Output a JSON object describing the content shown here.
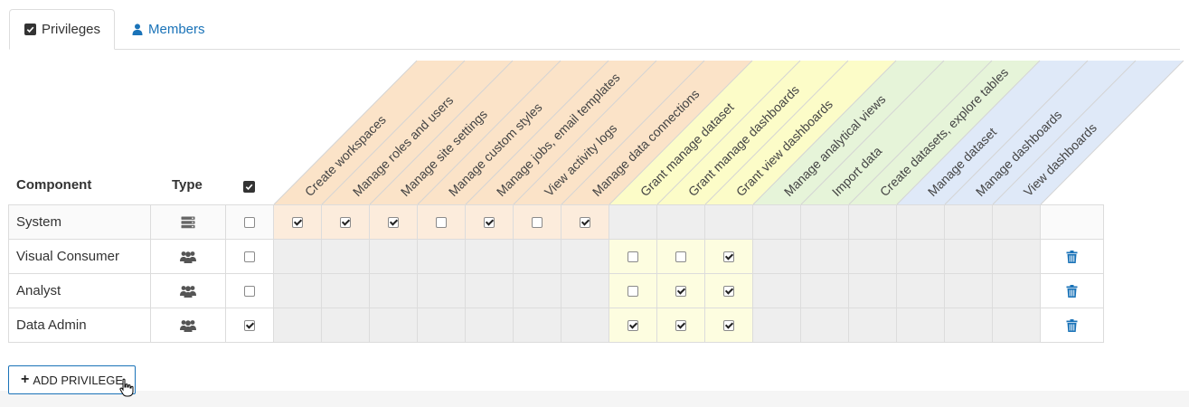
{
  "tabs": [
    {
      "label": "Privileges",
      "icon": "checkbox-icon",
      "active": true
    },
    {
      "label": "Members",
      "icon": "user-icon",
      "active": false
    }
  ],
  "table": {
    "headers": {
      "component": "Component",
      "type": "Type"
    },
    "privilege_columns": [
      {
        "label": "Create workspaces",
        "group": "orange"
      },
      {
        "label": "Manage roles and users",
        "group": "orange"
      },
      {
        "label": "Manage site settings",
        "group": "orange"
      },
      {
        "label": "Manage custom styles",
        "group": "orange"
      },
      {
        "label": "Manage jobs, email templates",
        "group": "orange"
      },
      {
        "label": "View activity logs",
        "group": "orange"
      },
      {
        "label": "Manage data connections",
        "group": "orange"
      },
      {
        "label": "Grant manage dataset",
        "group": "yellow"
      },
      {
        "label": "Grant manage dashboards",
        "group": "yellow"
      },
      {
        "label": "Grant view dashboards",
        "group": "yellow"
      },
      {
        "label": "Manage analytical views",
        "group": "green"
      },
      {
        "label": "Import data",
        "group": "green"
      },
      {
        "label": "Create datasets, explore tables",
        "group": "green"
      },
      {
        "label": "Manage dataset",
        "group": "blue"
      },
      {
        "label": "Manage dashboards",
        "group": "blue"
      },
      {
        "label": "View dashboards",
        "group": "blue"
      }
    ],
    "rows": [
      {
        "name": "System",
        "type_icon": "server-stack-icon",
        "select": false,
        "cells": [
          true,
          true,
          true,
          false,
          true,
          false,
          true,
          null,
          null,
          null,
          null,
          null,
          null,
          null,
          null,
          null
        ],
        "deletable": false
      },
      {
        "name": "Visual Consumer",
        "type_icon": "user-group-icon",
        "select": false,
        "cells": [
          null,
          null,
          null,
          null,
          null,
          null,
          null,
          false,
          false,
          true,
          null,
          null,
          null,
          null,
          null,
          null
        ],
        "deletable": true
      },
      {
        "name": "Analyst",
        "type_icon": "user-group-icon",
        "select": false,
        "cells": [
          null,
          null,
          null,
          null,
          null,
          null,
          null,
          false,
          true,
          true,
          null,
          null,
          null,
          null,
          null,
          null
        ],
        "deletable": true
      },
      {
        "name": "Data Admin",
        "type_icon": "user-group-icon",
        "select": true,
        "cells": [
          null,
          null,
          null,
          null,
          null,
          null,
          null,
          true,
          true,
          true,
          null,
          null,
          null,
          null,
          null,
          null
        ],
        "deletable": true
      }
    ]
  },
  "add_button": {
    "label": "ADD PRIVILEGE",
    "icon": "plus-icon"
  },
  "colors": {
    "orange": "#fbe3c8",
    "yellow": "#fcfcc8",
    "green": "#e6f4d9",
    "blue": "#dfe9f8",
    "link": "#1a73b8",
    "trash": "#1a73b8"
  }
}
